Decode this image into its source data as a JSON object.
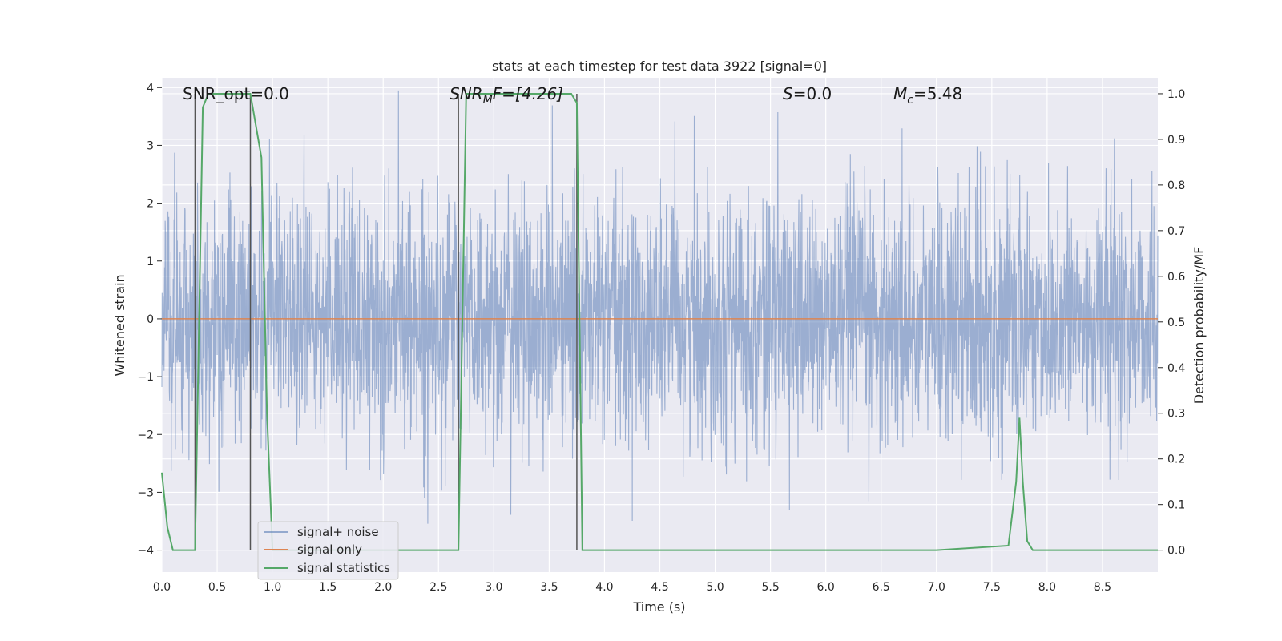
{
  "chart_data": {
    "type": "line",
    "title": "stats at each timestep for test data 3922 [signal=0]",
    "xlabel": "Time (s)",
    "ylabel_left": "Whitened strain",
    "ylabel_right": "Detection probability/MF",
    "xlim": [
      0.0,
      9.0
    ],
    "ylim_left": [
      -4.38,
      4.17
    ],
    "ylim_right": [
      -0.048,
      1.035
    ],
    "x_ticks": [
      "0.0",
      "0.5",
      "1.0",
      "1.5",
      "2.0",
      "2.5",
      "3.0",
      "3.5",
      "4.0",
      "4.5",
      "5.0",
      "5.5",
      "6.0",
      "6.5",
      "7.0",
      "7.5",
      "8.0",
      "8.5"
    ],
    "y_ticks_left": [
      "−4",
      "−3",
      "−2",
      "−1",
      "0",
      "1",
      "2",
      "3",
      "4"
    ],
    "y_ticks_right": [
      "0.0",
      "0.1",
      "0.2",
      "0.3",
      "0.4",
      "0.5",
      "0.6",
      "0.7",
      "0.8",
      "0.9",
      "1.0"
    ],
    "grid": true,
    "legend_position": "lower-left",
    "annotations": {
      "snr_opt": "SNR_opt=0.0",
      "snr_mf_main": "SNR",
      "snr_mf_sub": "M",
      "snr_mf_tail": "F=[4.26]",
      "s_main": "S",
      "s_tail": "=0.0",
      "mc_main": "M",
      "mc_sub": "c",
      "mc_tail": "=5.48"
    },
    "series": [
      {
        "name": "signal+ noise",
        "color": "#4c72b0",
        "note": "dense whitened noise, amplitude about ±4"
      },
      {
        "name": "signal only",
        "color": "#dd8452",
        "y_constant": 0.0
      },
      {
        "name": "signal statistics",
        "color": "#55a868",
        "axis": "right",
        "x": [
          0.0,
          0.05,
          0.1,
          0.3,
          0.37,
          0.42,
          0.5,
          0.6,
          0.8,
          0.85,
          0.9,
          0.95,
          1.0,
          1.5,
          2.0,
          2.5,
          2.68,
          2.75,
          3.0,
          3.5,
          3.7,
          3.75,
          3.8,
          3.85,
          4.0,
          5.0,
          6.0,
          7.0,
          7.65,
          7.72,
          7.75,
          7.78,
          7.82,
          7.87,
          8.0,
          8.5,
          9.0
        ],
        "y": [
          0.17,
          0.05,
          0.0,
          0.0,
          0.97,
          1.0,
          1.0,
          1.0,
          1.0,
          0.93,
          0.86,
          0.3,
          0.0,
          0.0,
          0.0,
          0.0,
          0.0,
          1.0,
          1.0,
          1.0,
          1.0,
          0.98,
          0.0,
          0.0,
          0.0,
          0.0,
          0.0,
          0.0,
          0.01,
          0.15,
          0.29,
          0.15,
          0.02,
          0.0,
          0.0,
          0.0,
          0.0
        ]
      }
    ],
    "vertical_markers_x": [
      0.3,
      0.8,
      2.68,
      3.75
    ]
  }
}
